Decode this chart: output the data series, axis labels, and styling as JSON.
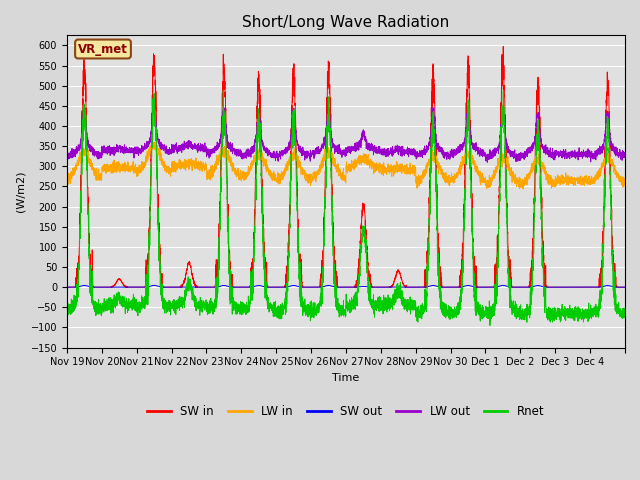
{
  "title": "Short/Long Wave Radiation",
  "xlabel": "Time",
  "ylabel": "(W/m2)",
  "ylim": [
    -150,
    625
  ],
  "yticks": [
    -150,
    -100,
    -50,
    0,
    50,
    100,
    150,
    200,
    250,
    300,
    350,
    400,
    450,
    500,
    550,
    600
  ],
  "station_label": "VR_met",
  "bg_color": "#d8d8d8",
  "plot_bg": "#e0e0e0",
  "grid_color": "white",
  "colors": {
    "SW_in": "#ff0000",
    "LW_in": "#ffa500",
    "SW_out": "#0000ff",
    "LW_out": "#9900cc",
    "Rnet": "#00cc00"
  },
  "legend_labels": [
    "SW in",
    "LW in",
    "SW out",
    "LW out",
    "Rnet"
  ],
  "n_days": 16,
  "tick_labels": [
    "Nov 19",
    "Nov 20",
    "Nov 21",
    "Nov 22",
    "Nov 23",
    "Nov 24",
    "Nov 25",
    "Nov 26",
    "Nov 27",
    "Nov 28",
    "Nov 29",
    "Nov 30",
    "Dec 1",
    "Dec 2",
    "Dec 3",
    "Dec 4"
  ]
}
